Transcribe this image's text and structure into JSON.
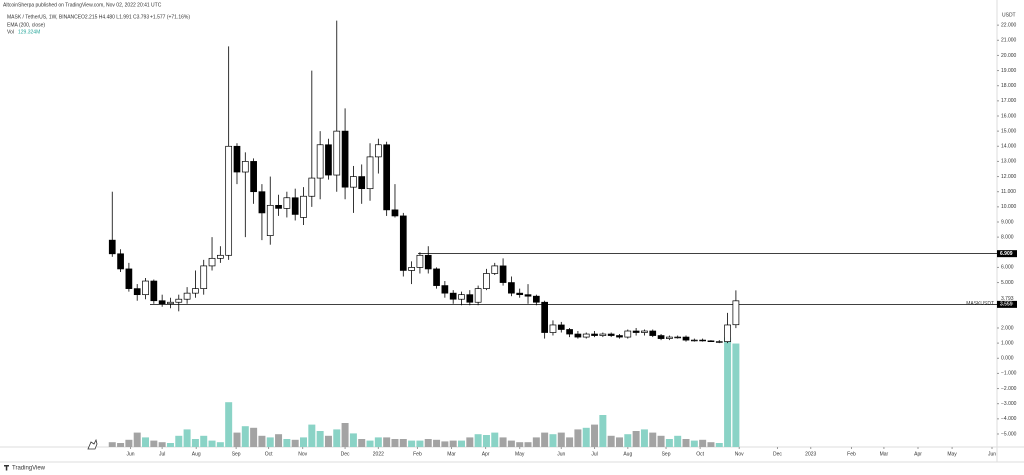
{
  "header": {
    "publisher": "AltcoinSherpa published on TradingView.com, Nov 02, 2022 20:41 UTC",
    "ohlc": "O2.215 H4.480 L1.991 C3.793",
    "change": "+1.577 (+71.16%)",
    "indicator": "EMA (200, close)",
    "volume_title": "Vol",
    "logo": "TradingView"
  },
  "chart_data": {
    "type": "candlestick",
    "currency": "USDT",
    "series": [
      {
        "name": "MASK / TetherUS, 1W, BINANCE",
        "up_color": "#ffffff",
        "down_color": "#000000",
        "open": [
          7.8,
          6.9,
          5.9,
          4.6,
          4.2,
          5.1,
          3.8,
          3.6,
          3.7,
          3.9,
          4.3,
          4.6,
          6.1,
          6.6,
          6.8,
          14.0,
          12.3,
          13.0,
          11.0,
          8.1,
          10.1,
          9.9,
          10.6,
          9.3,
          10.7,
          11.9,
          14.1,
          12.1,
          15.0,
          11.3,
          12.0,
          11.2,
          13.3,
          14.1,
          9.8,
          9.4,
          5.8,
          6.0,
          6.8,
          5.9,
          4.8,
          4.3,
          3.9,
          4.2,
          3.7,
          4.6,
          5.6,
          6.1,
          5.0,
          4.3,
          4.2,
          4.1,
          3.7,
          1.7,
          2.2,
          1.9,
          1.6,
          1.4,
          1.6,
          1.5,
          1.6,
          1.5,
          1.4,
          1.8,
          1.7,
          1.8,
          1.5,
          1.3,
          1.4,
          1.4,
          1.2,
          1.2,
          1.15,
          1.1,
          1.1,
          2.215
        ],
        "high": [
          11,
          7.2,
          6.3,
          4.9,
          5.3,
          5.2,
          4.2,
          4.0,
          4.2,
          4.7,
          5.8,
          6.5,
          8.0,
          7.4,
          20.6,
          14.2,
          13.6,
          13.2,
          11.5,
          12,
          10.8,
          11,
          11.2,
          11.3,
          19.0,
          15.0,
          14.5,
          22.3,
          16.5,
          12.7,
          12.8,
          14.2,
          14.5,
          14.3,
          11.5,
          9.6,
          6.4,
          7.0,
          7.4,
          6.0,
          5.1,
          4.5,
          4.4,
          4.5,
          4.8,
          5.9,
          6.3,
          6.6,
          5.4,
          4.6,
          4.9,
          4.2,
          3.8,
          2.5,
          2.4,
          2.0,
          1.8,
          1.7,
          1.8,
          1.7,
          1.7,
          1.6,
          1.9,
          2.0,
          1.9,
          1.9,
          1.6,
          1.5,
          1.5,
          1.5,
          1.3,
          1.3,
          1.2,
          1.2,
          3.0,
          4.48
        ],
        "low": [
          6.7,
          5.7,
          4.4,
          3.8,
          3.9,
          3.6,
          3.4,
          3.3,
          3.1,
          3.6,
          4.0,
          4.2,
          5.8,
          6.3,
          6.5,
          11.5,
          8.0,
          10.2,
          7.8,
          7.5,
          9.4,
          9.3,
          9.1,
          8.8,
          10.0,
          10.5,
          11.8,
          11.0,
          10.5,
          9.6,
          10.2,
          10.4,
          12.2,
          9.4,
          9.3,
          5.4,
          4.9,
          5.6,
          5.6,
          4.6,
          4.0,
          3.6,
          3.5,
          3.5,
          3.5,
          4.5,
          5.5,
          4.8,
          4.1,
          4.0,
          3.6,
          3.5,
          1.3,
          1.5,
          1.7,
          1.4,
          1.3,
          1.3,
          1.4,
          1.4,
          1.4,
          1.3,
          1.3,
          1.5,
          1.5,
          1.4,
          1.2,
          1.2,
          1.3,
          1.1,
          1.1,
          1.1,
          1.1,
          1.0,
          1.0,
          1.991
        ],
        "close": [
          6.9,
          5.9,
          4.6,
          4.2,
          5.1,
          3.8,
          3.6,
          3.7,
          3.9,
          4.3,
          4.6,
          6.1,
          6.6,
          6.8,
          14.0,
          12.3,
          13.0,
          11.0,
          9.6,
          10.1,
          9.9,
          10.6,
          9.5,
          10.7,
          11.9,
          14.1,
          12.1,
          15.0,
          11.3,
          12.0,
          11.2,
          13.3,
          14.1,
          9.8,
          9.4,
          5.8,
          6.0,
          6.8,
          5.9,
          4.8,
          4.3,
          3.9,
          4.2,
          3.7,
          4.6,
          5.6,
          6.1,
          5.0,
          4.3,
          4.2,
          4.1,
          3.7,
          1.7,
          2.2,
          1.9,
          1.6,
          1.4,
          1.6,
          1.5,
          1.6,
          1.5,
          1.4,
          1.8,
          1.7,
          1.8,
          1.5,
          1.3,
          1.4,
          1.4,
          1.2,
          1.2,
          1.15,
          1.1,
          1.1,
          2.2,
          3.793
        ]
      }
    ],
    "volume": {
      "up_color": "#8ad3c6",
      "down_color": "#a3a3a3",
      "value_label": "129.324M",
      "values": [
        6,
        5,
        9,
        18,
        12,
        8,
        6,
        5,
        14,
        22,
        10,
        14,
        8,
        6,
        56,
        18,
        26,
        24,
        14,
        12,
        16,
        10,
        9,
        12,
        28,
        20,
        14,
        22,
        30,
        17,
        10,
        8,
        12,
        12,
        10,
        10,
        8,
        8,
        10,
        9,
        7,
        8,
        8,
        12,
        16,
        15,
        18,
        12,
        8,
        6,
        6,
        12,
        18,
        16,
        18,
        12,
        22,
        24,
        28,
        40,
        14,
        12,
        16,
        20,
        22,
        18,
        14,
        10,
        14,
        10,
        8,
        9,
        6,
        5,
        137,
        129.324
      ]
    },
    "levels": [
      {
        "value": 6.909,
        "label": "6.909"
      },
      {
        "value": 3.559,
        "label": "3.559"
      }
    ],
    "last_price": {
      "value": 3.793,
      "label": "3.793",
      "symbol": "MASKUSDT",
      "countdown": "4d 4h"
    },
    "xlim": [
      -13.5,
      106.4
    ],
    "xticks": [
      {
        "value": 2.2,
        "label": "Jun"
      },
      {
        "value": 6,
        "label": "Jul"
      },
      {
        "value": 10.1,
        "label": "Aug"
      },
      {
        "value": 14.9,
        "label": "Sep"
      },
      {
        "value": 18.8,
        "label": "Oct"
      },
      {
        "value": 22.9,
        "label": "Nov"
      },
      {
        "value": 28,
        "label": "Dec"
      },
      {
        "value": 32,
        "label": "2022"
      },
      {
        "value": 36.7,
        "label": "Feb"
      },
      {
        "value": 40.8,
        "label": "Mar"
      },
      {
        "value": 44.9,
        "label": "Apr"
      },
      {
        "value": 49,
        "label": "May"
      },
      {
        "value": 54,
        "label": "Jun"
      },
      {
        "value": 58,
        "label": "Jul"
      },
      {
        "value": 62,
        "label": "Aug"
      },
      {
        "value": 66.6,
        "label": "Sep"
      },
      {
        "value": 70.7,
        "label": "Oct"
      },
      {
        "value": 75.4,
        "label": "Nov"
      },
      {
        "value": 80,
        "label": "Dec"
      },
      {
        "value": 84,
        "label": "2023"
      },
      {
        "value": 88.9,
        "label": "Feb"
      },
      {
        "value": 92.8,
        "label": "Mar"
      },
      {
        "value": 96.9,
        "label": "Apr"
      },
      {
        "value": 101,
        "label": "May"
      },
      {
        "value": 105.8,
        "label": "Jun"
      }
    ],
    "ylim": [
      -5.86,
      23.0
    ],
    "yticks": [
      {
        "value": 22,
        "label": "22.000"
      },
      {
        "value": 21,
        "label": "21.000"
      },
      {
        "value": 20,
        "label": "20.000"
      },
      {
        "value": 19,
        "label": "19.000"
      },
      {
        "value": 18,
        "label": "18.000"
      },
      {
        "value": 17,
        "label": "17.000"
      },
      {
        "value": 16,
        "label": "16.000"
      },
      {
        "value": 15,
        "label": "15.000"
      },
      {
        "value": 14,
        "label": "14.000"
      },
      {
        "value": 13,
        "label": "13.000"
      },
      {
        "value": 12,
        "label": "12.000"
      },
      {
        "value": 11,
        "label": "11.000"
      },
      {
        "value": 10,
        "label": "10.000"
      },
      {
        "value": 9,
        "label": "9.000"
      },
      {
        "value": 8,
        "label": "8.000"
      },
      {
        "value": 6,
        "label": "6.000"
      },
      {
        "value": 5,
        "label": "5.000"
      },
      {
        "value": 2,
        "label": "2.000"
      },
      {
        "value": 1,
        "label": "1.000"
      },
      {
        "value": 0,
        "label": "0.000"
      },
      {
        "value": -1,
        "label": "−1.000"
      },
      {
        "value": -2,
        "label": "−2.000"
      },
      {
        "value": -3,
        "label": "−3.000"
      },
      {
        "value": -4,
        "label": "−4.000"
      },
      {
        "value": -5,
        "label": "−5.000"
      }
    ]
  }
}
